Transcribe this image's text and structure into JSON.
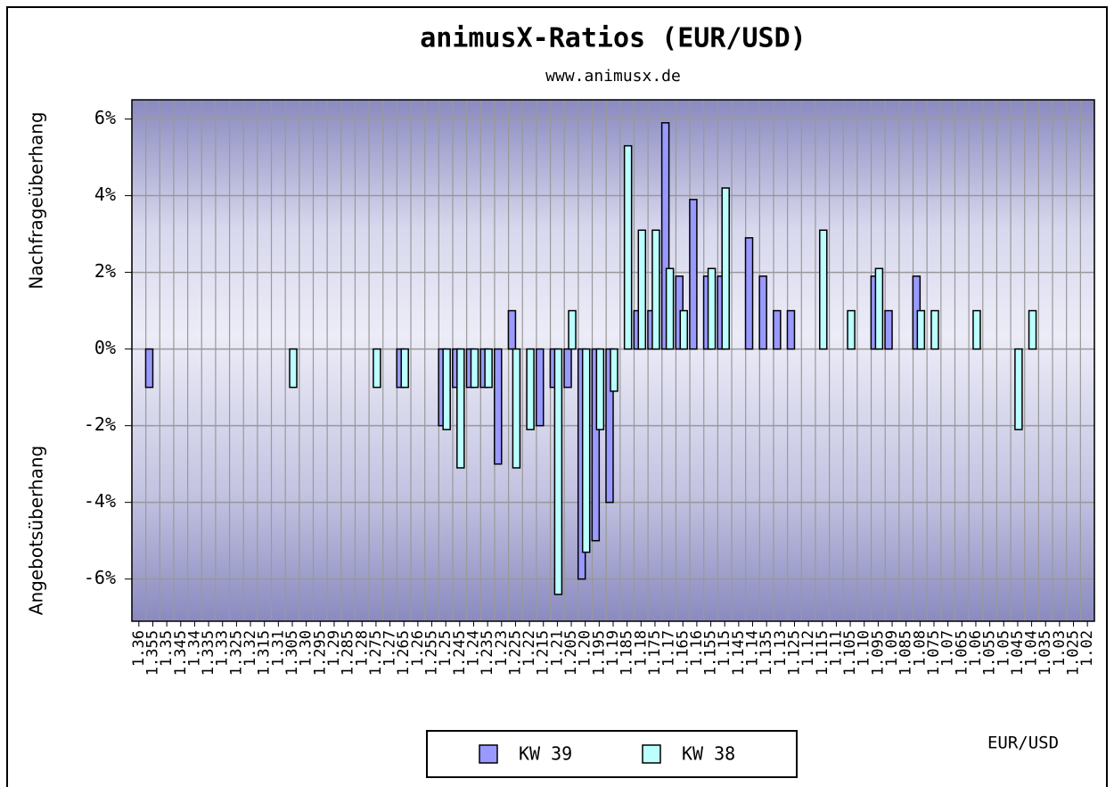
{
  "chart_data": {
    "type": "bar",
    "title": "animusX-Ratios (EUR/USD)",
    "subtitle": "www.animusx.de",
    "y_label_top": "Nachfrageüberhang",
    "y_label_bottom": "Angebotsüberhang",
    "x_label": "EUR/USD",
    "categories": [
      "1.36",
      "1.355",
      "1.35",
      "1.345",
      "1.34",
      "1.335",
      "1.33",
      "1.325",
      "1.32",
      "1.315",
      "1.31",
      "1.305",
      "1.30",
      "1.295",
      "1.29",
      "1.285",
      "1.28",
      "1.275",
      "1.27",
      "1.265",
      "1.26",
      "1.255",
      "1.25",
      "1.245",
      "1.24",
      "1.235",
      "1.23",
      "1.225",
      "1.22",
      "1.215",
      "1.21",
      "1.205",
      "1.20",
      "1.195",
      "1.19",
      "1.185",
      "1.18",
      "1.175",
      "1.17",
      "1.165",
      "1.16",
      "1.155",
      "1.15",
      "1.145",
      "1.14",
      "1.135",
      "1.13",
      "1.125",
      "1.12",
      "1.115",
      "1.11",
      "1.105",
      "1.10",
      "1.095",
      "1.09",
      "1.085",
      "1.08",
      "1.075",
      "1.07",
      "1.065",
      "1.06",
      "1.055",
      "1.05",
      "1.045",
      "1.04",
      "1.035",
      "1.03",
      "1.025",
      "1.02"
    ],
    "series": [
      {
        "name": "KW 39",
        "color": "#9999ff",
        "values": [
          0,
          -1,
          0,
          0,
          0,
          0,
          0,
          0,
          0,
          0,
          0,
          0,
          0,
          0,
          0,
          0,
          0,
          0,
          0,
          -1,
          0,
          0,
          -2,
          -1,
          -1,
          -1,
          -3,
          1,
          0,
          -2,
          -1,
          -1,
          -6,
          -5,
          -4,
          0,
          1,
          1,
          5.9,
          1.9,
          3.9,
          1.9,
          1.9,
          0,
          2.9,
          1.9,
          1,
          1,
          0,
          0,
          0,
          0,
          0,
          1.9,
          1,
          0,
          1.9,
          0,
          0,
          0,
          0,
          0,
          0,
          0,
          0,
          0,
          0,
          0,
          0
        ]
      },
      {
        "name": "KW 38",
        "color": "#bbffff",
        "values": [
          0,
          0,
          0,
          0,
          0,
          0,
          0,
          0,
          0,
          0,
          0,
          -1,
          0,
          0,
          0,
          0,
          0,
          -1,
          0,
          -1,
          0,
          0,
          -2.1,
          -3.1,
          -1,
          -1,
          0,
          -3.1,
          -2.1,
          0,
          -6.4,
          1,
          -5.3,
          -2.1,
          -1.1,
          5.3,
          3.1,
          3.1,
          2.1,
          1,
          0,
          2.1,
          4.2,
          0,
          0,
          0,
          0,
          0,
          0,
          3.1,
          0,
          1,
          0,
          2.1,
          0,
          0,
          1,
          1,
          0,
          0,
          1,
          0,
          0,
          -2.1,
          1,
          0,
          0,
          0,
          0
        ]
      }
    ],
    "ylim": [
      -7.1,
      6.5
    ],
    "yticks": [
      {
        "value": -6,
        "label": "-6%"
      },
      {
        "value": -4,
        "label": "-4%"
      },
      {
        "value": -2,
        "label": "-2%"
      },
      {
        "value": 0,
        "label": "0%"
      },
      {
        "value": 2,
        "label": "2%"
      },
      {
        "value": 4,
        "label": "4%"
      },
      {
        "value": 6,
        "label": "6%"
      }
    ],
    "grid": true
  }
}
